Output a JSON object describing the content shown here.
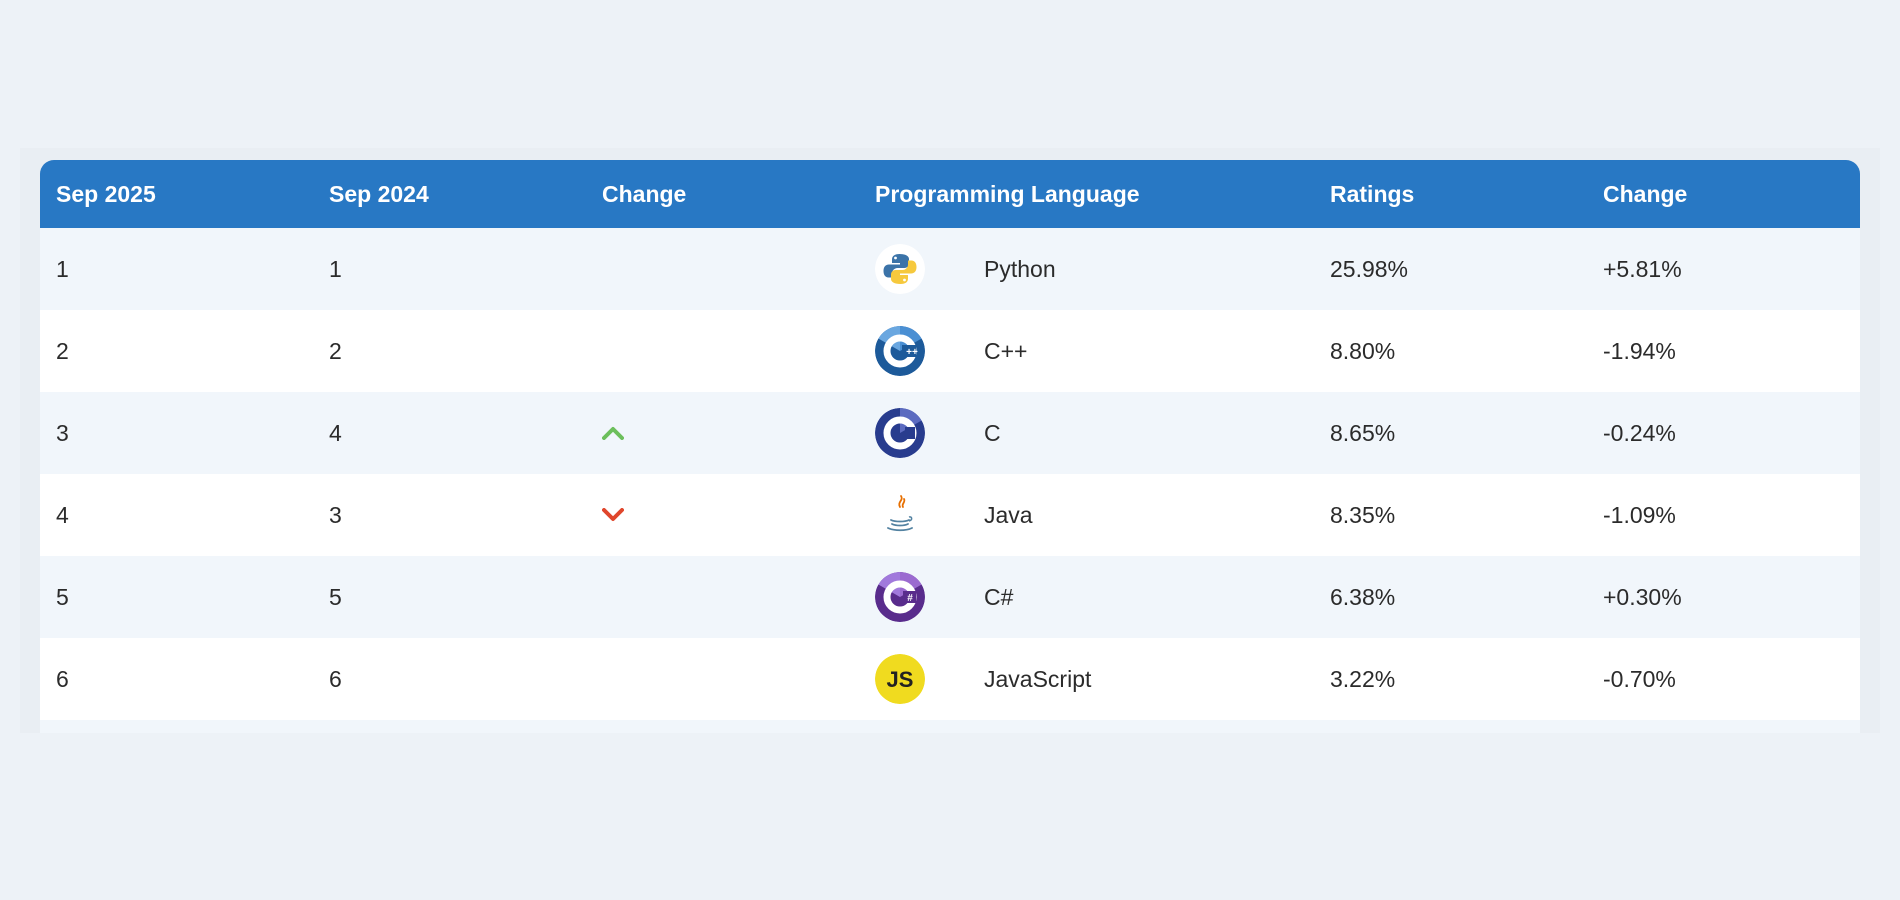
{
  "table": {
    "headers": [
      "Sep 2025",
      "Sep 2024",
      "Change",
      "Programming Language",
      "Ratings",
      "Change"
    ],
    "rows": [
      {
        "rank_2025": "1",
        "rank_2024": "1",
        "trend": "none",
        "logo": "python-logo-icon",
        "language": "Python",
        "rating": "25.98%",
        "change": "+5.81%"
      },
      {
        "rank_2025": "2",
        "rank_2024": "2",
        "trend": "none",
        "logo": "cpp-logo-icon",
        "language": "C++",
        "rating": "8.80%",
        "change": "-1.94%"
      },
      {
        "rank_2025": "3",
        "rank_2024": "4",
        "trend": "up",
        "logo": "c-logo-icon",
        "language": "C",
        "rating": "8.65%",
        "change": "-0.24%"
      },
      {
        "rank_2025": "4",
        "rank_2024": "3",
        "trend": "down",
        "logo": "java-logo-icon",
        "language": "Java",
        "rating": "8.35%",
        "change": "-1.09%"
      },
      {
        "rank_2025": "5",
        "rank_2024": "5",
        "trend": "none",
        "logo": "csharp-logo-icon",
        "language": "C#",
        "rating": "6.38%",
        "change": "+0.30%"
      },
      {
        "rank_2025": "6",
        "rank_2024": "6",
        "trend": "none",
        "logo": "javascript-logo-icon",
        "language": "JavaScript",
        "rating": "3.22%",
        "change": "-0.70%"
      }
    ]
  },
  "logo_text": {
    "javascript": "JS"
  },
  "colors": {
    "header_bg": "#2878c4",
    "row_alt_bg": "#f1f6fb",
    "trend_up": "#6cbf5c",
    "trend_down": "#e0462c"
  }
}
